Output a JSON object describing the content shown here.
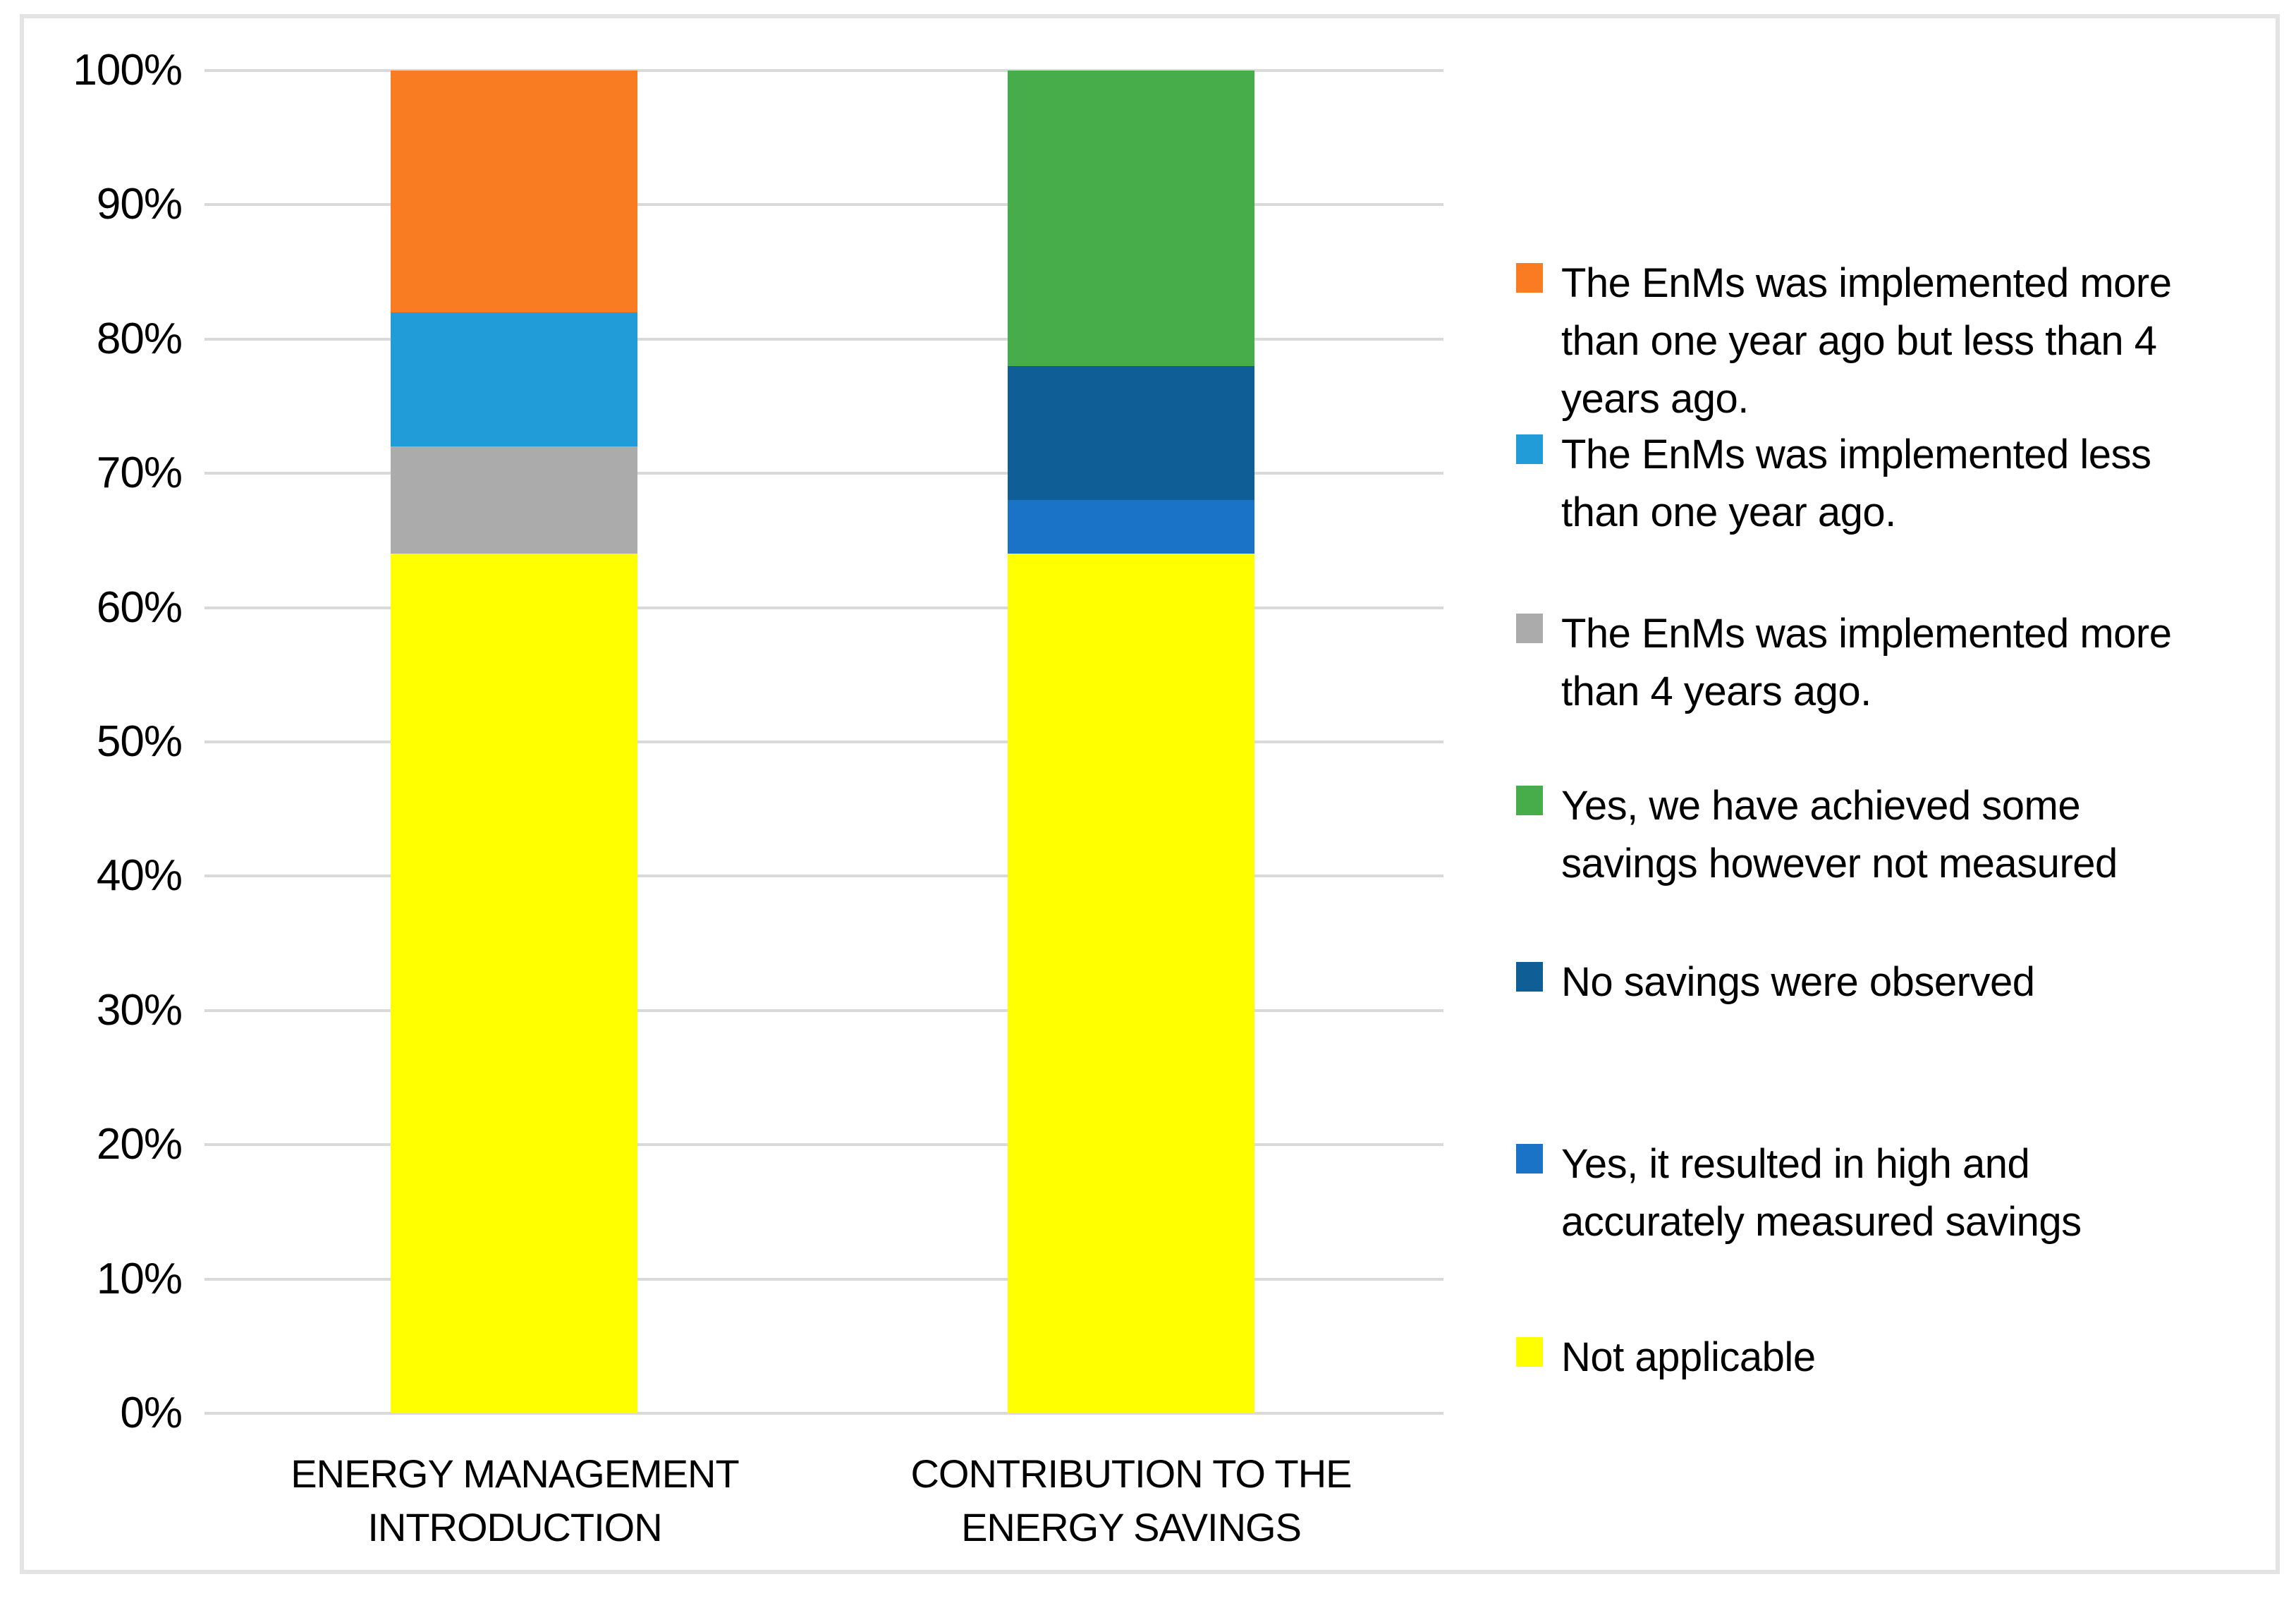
{
  "chart_data": {
    "type": "bar",
    "stacked": true,
    "units": "percent",
    "title": "",
    "xlabel": "",
    "ylabel": "",
    "ylim": [
      0,
      100
    ],
    "ytick_step": 10,
    "grid": true,
    "legend_position": "right",
    "yticks_top_to_bottom": [
      "100%",
      "90%",
      "80%",
      "70%",
      "60%",
      "50%",
      "40%",
      "30%",
      "20%",
      "10%",
      "0%"
    ],
    "categories": [
      {
        "label": "ENERGY MANAGEMENT\nINTRODUCTION"
      },
      {
        "label": "CONTRIBUTION TO THE\nENERGY SAVINGS"
      }
    ],
    "series": [
      {
        "id": "enms_more_1_less_4",
        "label": "The EnMs was implemented more\nthan one year ago but less than 4\nyears ago.",
        "color": "#F97C22",
        "values": [
          18,
          0
        ]
      },
      {
        "id": "enms_less_1",
        "label": "The EnMs was implemented less\nthan one year ago.",
        "color": "#219CD9",
        "values": [
          10,
          0
        ]
      },
      {
        "id": "enms_more_4",
        "label": "The EnMs was implemented more\nthan 4 years ago.",
        "color": "#ABABAB",
        "values": [
          8,
          0
        ]
      },
      {
        "id": "some_savings_not_measured",
        "label": "Yes, we have achieved some\nsavings however not measured",
        "color": "#47AD4A",
        "values": [
          0,
          22
        ]
      },
      {
        "id": "no_savings",
        "label": "No savings were observed",
        "color": "#0F5F96",
        "values": [
          0,
          10
        ]
      },
      {
        "id": "high_measured_savings",
        "label": "Yes, it resulted in high and\naccurately measured savings",
        "color": "#1B73C8",
        "values": [
          0,
          4
        ]
      },
      {
        "id": "not_applicable",
        "label": "Not applicable",
        "color": "#FFFF00",
        "values": [
          64,
          64
        ]
      }
    ],
    "stack_order_bottom_to_top": [
      [
        "not_applicable",
        "enms_more_4",
        "enms_less_1",
        "enms_more_1_less_4"
      ],
      [
        "not_applicable",
        "high_measured_savings",
        "no_savings",
        "some_savings_not_measured"
      ]
    ],
    "colors": {
      "gridline": "#D9D9D9",
      "frame_border": "#E3E3E3",
      "background": "#FFFFFF",
      "text": "#000000"
    }
  },
  "layout_legend_tops": [
    361,
    604,
    858,
    1102,
    1352,
    1610,
    1884
  ],
  "layout_bar_lefts": [
    264,
    1139
  ]
}
